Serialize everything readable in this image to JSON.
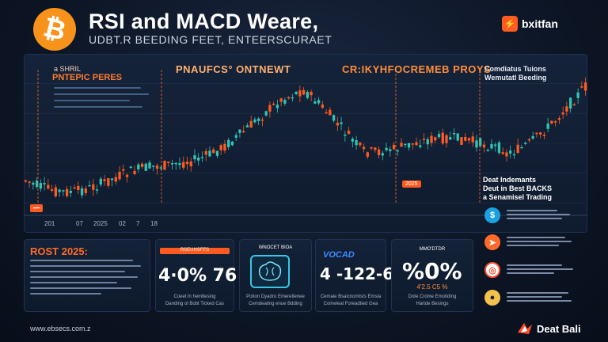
{
  "header": {
    "title": "RSI and MACD Weare,",
    "subtitle": "UDBT.R BEEDING FEET, ENTEERSCURAET",
    "btc_symbol": "₿",
    "brand_name": "bxitfan",
    "brand_icon": "bolt-icon"
  },
  "chart_panel": {
    "left_small": "a SHRIL",
    "left_title": "PNTEPIC PERES",
    "center_title": "PNAUFCS° ONTNEWT",
    "center_right_title": "CR:IKYHFOCREMEB PROYS",
    "right_line1": "Comdiatus Tuions",
    "right_line2": "Wemutatl Beeding",
    "rsi_marker": "2025",
    "x_labels": [
      "201",
      "07",
      "2025",
      "02",
      "7",
      "18"
    ],
    "right_header": "Deat Indemants",
    "right_header2": "Deut in Best BACKS",
    "right_header3": "a Senamisel Trading"
  },
  "side_list": [
    {
      "icon": "dollar-icon",
      "color": "#1ba1e2",
      "glyph": "$"
    },
    {
      "icon": "rocket-icon",
      "color": "#ff6a2a",
      "glyph": "➤"
    },
    {
      "icon": "target-icon",
      "color": "#ff4d2e",
      "glyph": "◎"
    },
    {
      "icon": "coin-icon",
      "color": "#f2c14e",
      "glyph": "●"
    }
  ],
  "cards": {
    "rost_title": "ROST 2025:",
    "card1_header": "RSEUHSFFS",
    "card1_value": "4·0% 76",
    "card1_cap1": "Coeet ln hemtlesing",
    "card1_cap2": "Danding ol Bobt Ticked Cas",
    "card2_header": "WNOCET BIOA",
    "card2_cap1": "Potion Dyadro Emeretlenee",
    "card2_cap2": "Cemdeating enue Bdding",
    "card3_header": "VOCAD",
    "card3_value": "4 -122-6",
    "card3_cap1": "Cemaie Bsaicnomtsts Emsla",
    "card3_cap2": "Comeleal Foreadtied Gea",
    "card4_header": "MMO'DTDR",
    "card4_value": "%0%",
    "card4_sub": "4'2.5 C5 %",
    "card4_cap1": "Dote Crome Emotiding",
    "card4_cap2": "Hartde Besings"
  },
  "footer": {
    "url": "www.ebsecs.com.z",
    "brand": "Deat Bali"
  },
  "colors": {
    "accent": "#ff6a2a",
    "bull": "#2ec4b6",
    "bear": "#ff5a1f",
    "bg": "#0d1626"
  }
}
